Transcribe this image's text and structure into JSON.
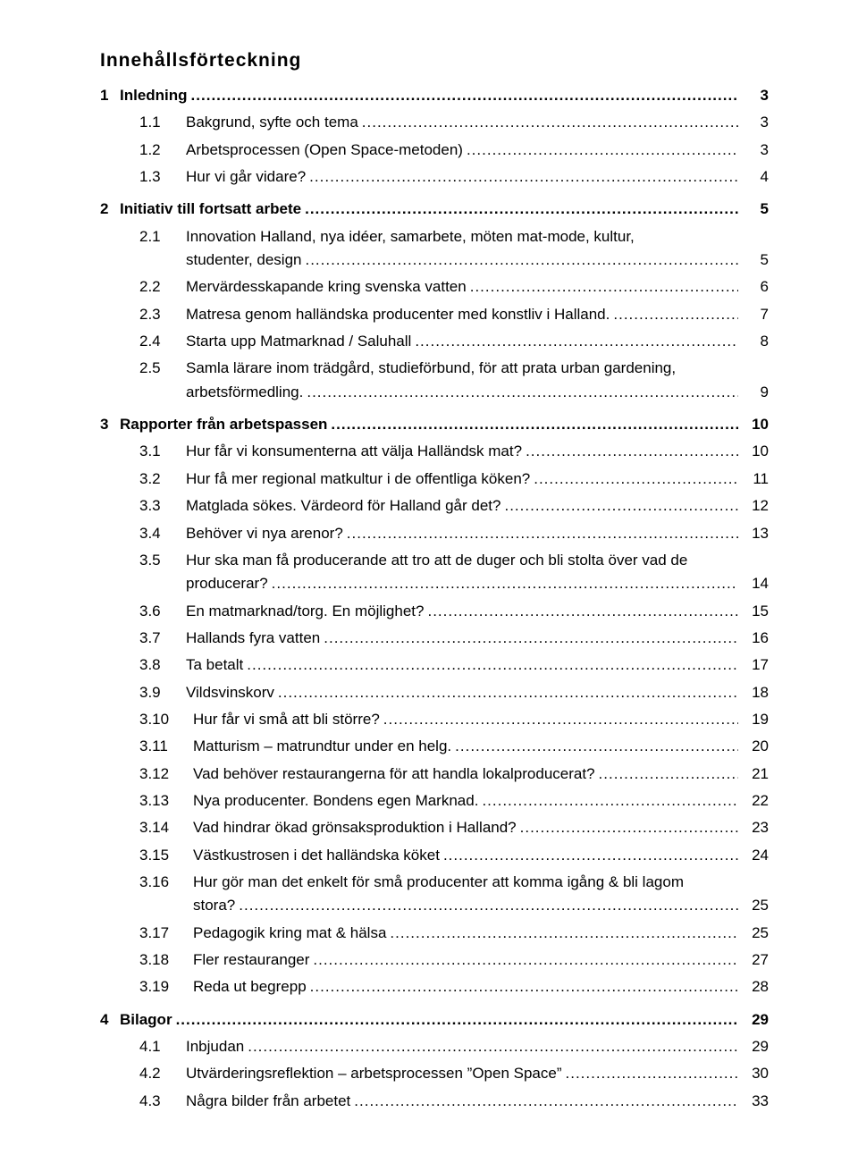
{
  "title": "Innehållsförteckning",
  "font": {
    "family": "Verdana",
    "title_size_pt": 16,
    "body_size_pt": 13
  },
  "colors": {
    "text": "#000000",
    "background": "#ffffff",
    "leader": "#000000"
  },
  "toc": [
    {
      "level": 1,
      "num": "1",
      "label": "Inledning",
      "page": "3"
    },
    {
      "level": 2,
      "num": "1.1",
      "label": "Bakgrund, syfte och tema",
      "page": "3"
    },
    {
      "level": 2,
      "num": "1.2",
      "label": "Arbetsprocessen (Open Space-metoden)",
      "page": "3"
    },
    {
      "level": 2,
      "num": "1.3",
      "label": "Hur vi går vidare?",
      "page": "4"
    },
    {
      "level": 1,
      "num": "2",
      "label": "Initiativ till fortsatt arbete",
      "page": "5"
    },
    {
      "level": 2,
      "num": "2.1",
      "label": "Innovation Halland, nya idéer, samarbete, möten mat-mode, kultur,",
      "cont_label": "studenter, design",
      "page": "5"
    },
    {
      "level": 2,
      "num": "2.2",
      "label": "Mervärdesskapande kring svenska vatten",
      "page": "6"
    },
    {
      "level": 2,
      "num": "2.3",
      "label": "Matresa genom halländska producenter med konstliv i Halland.",
      "page": "7"
    },
    {
      "level": 2,
      "num": "2.4",
      "label": "Starta upp Matmarknad / Saluhall",
      "page": "8"
    },
    {
      "level": 2,
      "num": "2.5",
      "label": "Samla lärare inom trädgård, studieförbund, för att prata urban gardening,",
      "cont_label": "arbetsförmedling.",
      "page": "9"
    },
    {
      "level": 1,
      "num": "3",
      "label": "Rapporter från arbetspassen",
      "page": "10"
    },
    {
      "level": 2,
      "num": "3.1",
      "label": "Hur får vi konsumenterna att välja Halländsk mat?",
      "page": "10"
    },
    {
      "level": 2,
      "num": "3.2",
      "label": "Hur få mer regional matkultur i de offentliga köken?",
      "page": "11"
    },
    {
      "level": 2,
      "num": "3.3",
      "label": "Matglada sökes. Värdeord för Halland går det?",
      "page": "12"
    },
    {
      "level": 2,
      "num": "3.4",
      "label": "Behöver vi nya arenor?",
      "page": "13"
    },
    {
      "level": 2,
      "num": "3.5",
      "label": "Hur ska man få producerande att tro att de duger och bli stolta över vad de",
      "cont_label": "producerar?",
      "page": "14"
    },
    {
      "level": 2,
      "num": "3.6",
      "label": "En matmarknad/torg. En möjlighet?",
      "page": "15"
    },
    {
      "level": 2,
      "num": "3.7",
      "label": "Hallands fyra vatten",
      "page": "16"
    },
    {
      "level": 2,
      "num": "3.8",
      "label": "Ta betalt",
      "page": "17"
    },
    {
      "level": 2,
      "num": "3.9",
      "label": "Vildsvinskorv",
      "page": "18"
    },
    {
      "level": 2,
      "num": "3.10",
      "label": "Hur får vi små att bli större?",
      "page": "19"
    },
    {
      "level": 2,
      "num": "3.11",
      "label": "Matturism – matrundtur under en helg.",
      "page": "20"
    },
    {
      "level": 2,
      "num": "3.12",
      "label": "Vad behöver restaurangerna för att handla lokalproducerat?",
      "page": "21"
    },
    {
      "level": 2,
      "num": "3.13",
      "label": "Nya producenter. Bondens egen Marknad.",
      "page": "22"
    },
    {
      "level": 2,
      "num": "3.14",
      "label": "Vad hindrar ökad grönsaksproduktion i Halland?",
      "page": "23"
    },
    {
      "level": 2,
      "num": "3.15",
      "label": "Västkustrosen i det halländska köket",
      "page": "24"
    },
    {
      "level": 2,
      "num": "3.16",
      "label": "Hur gör man det enkelt för små producenter att komma igång & bli lagom",
      "cont_label": "stora?",
      "page": "25"
    },
    {
      "level": 2,
      "num": "3.17",
      "label": "Pedagogik kring mat & hälsa",
      "page": "25"
    },
    {
      "level": 2,
      "num": "3.18",
      "label": "Fler restauranger",
      "page": "27"
    },
    {
      "level": 2,
      "num": "3.19",
      "label": "Reda ut begrepp",
      "page": "28"
    },
    {
      "level": 1,
      "num": "4",
      "label": "Bilagor",
      "page": "29"
    },
    {
      "level": 2,
      "num": "4.1",
      "label": "Inbjudan",
      "page": "29"
    },
    {
      "level": 2,
      "num": "4.2",
      "label": "Utvärderingsreflektion – arbetsprocessen ”Open Space”",
      "page": "30"
    },
    {
      "level": 2,
      "num": "4.3",
      "label": "Några bilder från arbetet",
      "page": "33"
    }
  ]
}
